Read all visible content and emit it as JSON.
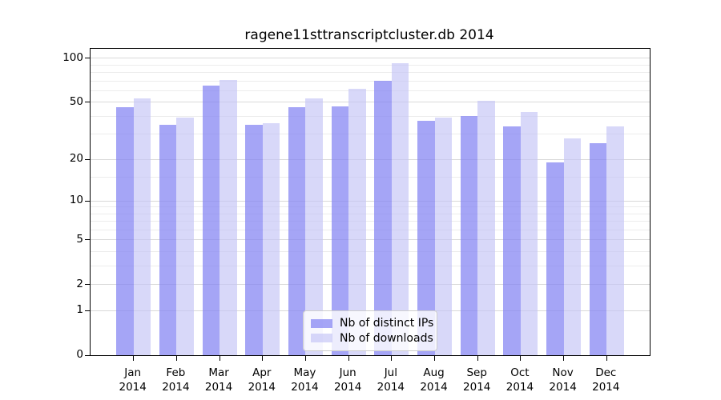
{
  "chart_data": {
    "type": "bar",
    "title": "ragene11sttranscriptcluster.db 2014",
    "categories": [
      "Jan",
      "Feb",
      "Mar",
      "Apr",
      "May",
      "Jun",
      "Jul",
      "Aug",
      "Sep",
      "Oct",
      "Nov",
      "Dec"
    ],
    "year": "2014",
    "series": [
      {
        "name": "Nb of distinct IPs",
        "color": "#8282f2",
        "alpha": 0.72,
        "values": [
          46,
          35,
          65,
          35,
          46,
          47,
          70,
          37,
          40,
          34,
          19,
          26
        ]
      },
      {
        "name": "Nb of downloads",
        "color": "#c3c3f6",
        "alpha": 0.65,
        "values": [
          53,
          39,
          71,
          36,
          53,
          62,
          93,
          39,
          51,
          43,
          28,
          34
        ]
      }
    ],
    "yscale": "log1p",
    "y_ticks": [
      0,
      1,
      2,
      5,
      10,
      20,
      50,
      100
    ],
    "y_minor_gridlines": [
      3,
      4,
      6,
      7,
      8,
      9,
      15,
      30,
      40,
      60,
      70,
      80,
      90
    ],
    "ylim": [
      0,
      116
    ],
    "grid": true,
    "legend_position": "lower center"
  },
  "axis": {
    "grid_major_color": "#d9d9d9",
    "grid_minor_color": "#ececec",
    "spine_color": "#000000",
    "text_color": "#000000"
  },
  "legend_style": {
    "background": "rgba(255,255,255,0.8)",
    "border_color": "#cccccc"
  }
}
